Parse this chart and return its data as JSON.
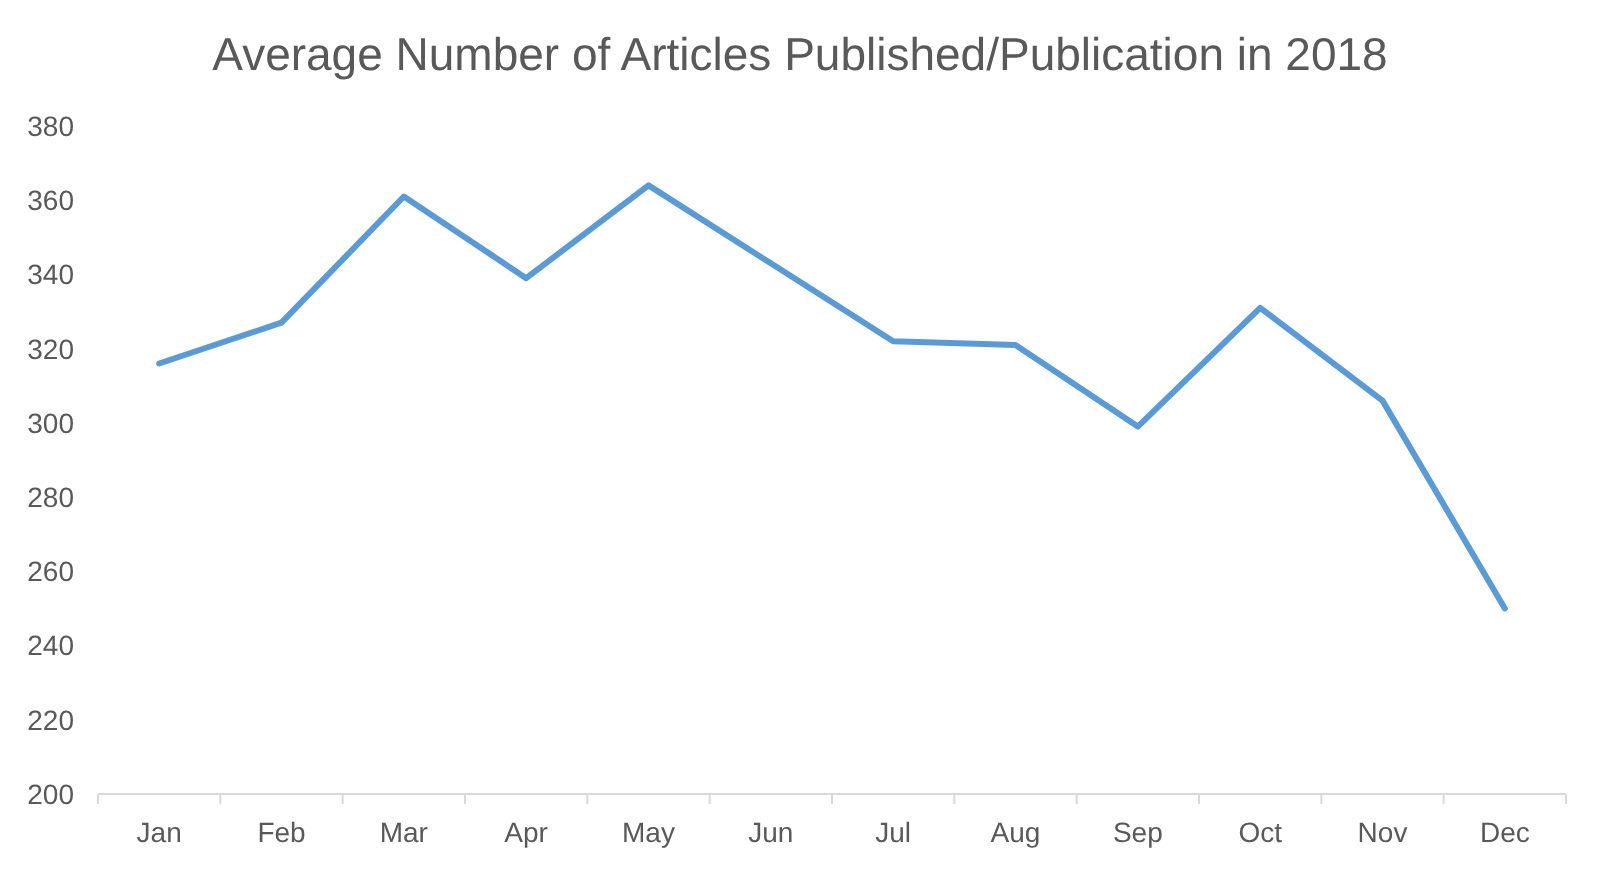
{
  "chart_data": {
    "type": "line",
    "title": "Average Number of Articles Published/Publication in 2018",
    "categories": [
      "Jan",
      "Feb",
      "Mar",
      "Apr",
      "May",
      "Jun",
      "Jul",
      "Aug",
      "Sep",
      "Oct",
      "Nov",
      "Dec"
    ],
    "series": [
      {
        "color": "#5b9bd5",
        "values": [
          316,
          327,
          361,
          339,
          364,
          343,
          322,
          321,
          299,
          331,
          306,
          250
        ]
      }
    ],
    "ylim": [
      200,
      380
    ],
    "yticks": [
      200,
      220,
      240,
      260,
      280,
      300,
      320,
      340,
      360,
      380
    ]
  }
}
